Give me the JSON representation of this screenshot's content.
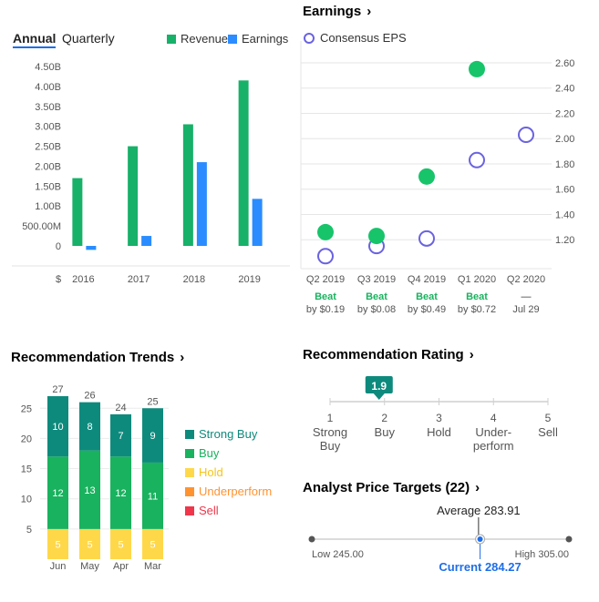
{
  "financials": {
    "tabs": [
      {
        "label": "Annual",
        "active": true
      },
      {
        "label": "Quarterly",
        "active": false
      }
    ],
    "legend": [
      {
        "label": "Revenue",
        "color": "#17b169"
      },
      {
        "label": "Earnings",
        "color": "#2a8cff"
      }
    ],
    "chart_data": {
      "type": "bar",
      "categories": [
        "2016",
        "2017",
        "2018",
        "2019"
      ],
      "series": [
        {
          "name": "Revenue",
          "color": "#17b169",
          "values": [
            1.7,
            2.5,
            3.05,
            4.15
          ]
        },
        {
          "name": "Earnings",
          "color": "#2a8cff",
          "values": [
            -0.1,
            0.25,
            2.1,
            1.18
          ]
        }
      ],
      "yticks": [
        "0",
        "500.00M",
        "1.00B",
        "1.50B",
        "2.00B",
        "2.50B",
        "3.00B",
        "3.50B",
        "4.00B",
        "4.50B"
      ],
      "ytick_values": [
        0,
        0.5,
        1.0,
        1.5,
        2.0,
        2.5,
        3.0,
        3.5,
        4.0,
        4.5
      ],
      "ylim": [
        -0.35,
        4.5
      ],
      "xaxis_unit": "$"
    }
  },
  "earnings": {
    "title": "Earnings",
    "legend_label": "Consensus EPS",
    "chart_data": {
      "type": "scatter",
      "categories": [
        "Q2 2019",
        "Q3 2019",
        "Q4 2019",
        "Q1 2020",
        "Q2 2020"
      ],
      "actual": [
        1.26,
        1.23,
        1.7,
        2.55,
        null
      ],
      "consensus": [
        1.07,
        1.15,
        1.21,
        1.83,
        2.03
      ],
      "yticks": [
        "1.20",
        "1.40",
        "1.60",
        "1.80",
        "2.00",
        "2.20",
        "2.40",
        "2.60"
      ],
      "ytick_values": [
        1.2,
        1.4,
        1.6,
        1.8,
        2.0,
        2.2,
        2.4,
        2.6
      ],
      "ylim": [
        1.0,
        2.65
      ],
      "results": [
        {
          "status": "Beat",
          "detail": "by $0.19"
        },
        {
          "status": "Beat",
          "detail": "by $0.08"
        },
        {
          "status": "Beat",
          "detail": "by $0.49"
        },
        {
          "status": "Beat",
          "detail": "by $0.72"
        },
        {
          "status": "—",
          "detail": "Jul 29"
        }
      ],
      "actual_color": "#17c46a",
      "consensus_color": "#6a63e0"
    }
  },
  "trends": {
    "title": "Recommendation Trends",
    "chart_data": {
      "type": "bar",
      "stacked": true,
      "categories": [
        "Jun",
        "May",
        "Apr",
        "Mar"
      ],
      "totals": [
        27,
        26,
        24,
        25
      ],
      "series": [
        {
          "name": "Strong Buy",
          "color": "#0e8a7d",
          "values": [
            10,
            8,
            7,
            9
          ]
        },
        {
          "name": "Buy",
          "color": "#19b25e",
          "values": [
            12,
            13,
            12,
            11
          ]
        },
        {
          "name": "Hold",
          "color": "#ffd84a",
          "values": [
            5,
            5,
            5,
            5
          ]
        },
        {
          "name": "Underperform",
          "color": "#ff9330",
          "values": [
            0,
            0,
            0,
            0
          ]
        },
        {
          "name": "Sell",
          "color": "#f0364a",
          "values": [
            0,
            0,
            0,
            0
          ]
        }
      ],
      "legend_text_colors": [
        "#0e8a7d",
        "#19b25e",
        "#f5c518",
        "#ff9330",
        "#f0364a"
      ],
      "yticks": [
        "5",
        "10",
        "15",
        "20",
        "25"
      ],
      "ytick_values": [
        5,
        10,
        15,
        20,
        25
      ],
      "ylim": [
        0,
        27
      ]
    }
  },
  "rating": {
    "title": "Recommendation Rating",
    "value": "1.9",
    "value_num": 1.9,
    "scale": [
      {
        "num": "1",
        "label1": "Strong",
        "label2": "Buy"
      },
      {
        "num": "2",
        "label1": "Buy",
        "label2": ""
      },
      {
        "num": "3",
        "label1": "Hold",
        "label2": ""
      },
      {
        "num": "4",
        "label1": "Under-",
        "label2": "perform"
      },
      {
        "num": "5",
        "label1": "Sell",
        "label2": ""
      }
    ]
  },
  "targets": {
    "title": "Analyst Price Targets (22)",
    "average_label": "Average 283.91",
    "current_label": "Current 284.27",
    "low_label": "Low 245.00",
    "high_label": "High 305.00",
    "low": 245.0,
    "high": 305.0,
    "average": 283.91,
    "current": 284.27
  }
}
